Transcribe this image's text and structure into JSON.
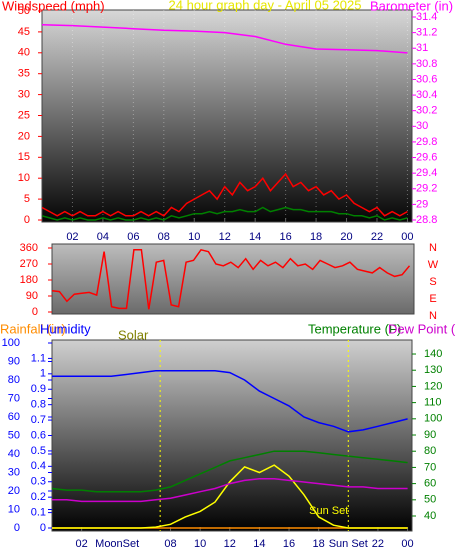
{
  "chart_data": [
    {
      "type": "line",
      "title": "24 hour graph day - April 05 2025",
      "y_label": "Windspeed (mph)",
      "x": [
        0,
        0.5,
        1,
        1.5,
        2,
        2.5,
        3,
        3.5,
        4,
        4.5,
        5,
        5.5,
        6,
        6.5,
        7,
        7.5,
        8,
        8.5,
        9,
        9.5,
        10,
        10.5,
        11,
        11.5,
        12,
        12.5,
        13,
        13.5,
        14,
        14.5,
        15,
        15.5,
        16,
        16.5,
        17,
        17.5,
        18,
        18.5,
        19,
        19.5,
        20,
        20.5,
        21,
        21.5,
        22,
        22.5,
        23,
        23.5,
        24
      ],
      "series": [
        {
          "color": "#ff0000",
          "axis": "y",
          "values": [
            3,
            2,
            1,
            2,
            1,
            2,
            1,
            1,
            2,
            1,
            2,
            1,
            1,
            2,
            1,
            2,
            1,
            3,
            2,
            4,
            5,
            6,
            7,
            5,
            8,
            6,
            9,
            7,
            8,
            10,
            7,
            9,
            11,
            8,
            9,
            7,
            8,
            6,
            7,
            5,
            6,
            4,
            3,
            2,
            3,
            1,
            2,
            1,
            2
          ]
        },
        {
          "color": "#008000",
          "axis": "y",
          "values": [
            1,
            0.5,
            0,
            0.5,
            0,
            0.5,
            0,
            0,
            0.5,
            0,
            0.5,
            0,
            0,
            0.5,
            0,
            0.5,
            0,
            1,
            0.5,
            1,
            1.5,
            1.5,
            2,
            1.5,
            2,
            2,
            2.5,
            2,
            2,
            3,
            2,
            2.5,
            3,
            2.5,
            2.5,
            2,
            2,
            2,
            2,
            1.5,
            1.5,
            1,
            1,
            0.5,
            1,
            0,
            0.5,
            0,
            0.5
          ]
        },
        {
          "name": "Barometer (in)",
          "color": "#ff00ff",
          "axis": "y2",
          "x": [
            0,
            2,
            4,
            6,
            8,
            10,
            12,
            14,
            16,
            18,
            20,
            22,
            24
          ],
          "values": [
            31.3,
            31.29,
            31.27,
            31.25,
            31.23,
            31.22,
            31.2,
            31.15,
            31.05,
            30.99,
            30.98,
            30.97,
            30.94
          ]
        }
      ],
      "xlim": [
        0,
        24.3
      ],
      "xticks": [
        {
          "value": 2,
          "label": "02"
        },
        {
          "value": 4,
          "label": "04"
        },
        {
          "value": 6,
          "label": "06"
        },
        {
          "value": 8,
          "label": "08"
        },
        10,
        12,
        14,
        16,
        18,
        20,
        22,
        {
          "value": 24,
          "label": "00"
        }
      ],
      "ylim": [
        0,
        50
      ],
      "yticks": [
        0,
        5,
        10,
        15,
        20,
        25,
        30,
        35,
        40,
        45,
        50
      ],
      "y2lim": [
        28.8,
        31.4
      ],
      "y2ticks": [
        28.8,
        29,
        29.2,
        29.4,
        29.6,
        29.8,
        30,
        30.2,
        30.4,
        30.6,
        30.8,
        31,
        31.2,
        31.4
      ],
      "axis_colors": {
        "y": "#ff0000",
        "y2": "#ff00ff"
      },
      "grid": true
    },
    {
      "type": "line",
      "x": [
        0,
        0.5,
        1,
        1.5,
        2,
        2.5,
        3,
        3.5,
        4,
        4.5,
        5,
        5.5,
        6,
        6.5,
        7,
        7.5,
        8,
        8.5,
        9,
        9.5,
        10,
        10.5,
        11,
        11.5,
        12,
        12.5,
        13,
        13.5,
        14,
        14.5,
        15,
        15.5,
        16,
        16.5,
        17,
        17.5,
        18,
        18.5,
        19,
        19.5,
        20,
        20.5,
        21,
        21.5,
        22,
        22.5,
        23,
        23.5,
        24
      ],
      "series": [
        {
          "color": "#ff0000",
          "axis": "y",
          "values": [
            120,
            115,
            60,
            100,
            105,
            110,
            95,
            340,
            30,
            20,
            20,
            350,
            350,
            15,
            280,
            290,
            40,
            30,
            280,
            290,
            350,
            340,
            270,
            260,
            280,
            250,
            300,
            240,
            290,
            260,
            280,
            250,
            300,
            260,
            270,
            240,
            290,
            270,
            250,
            260,
            280,
            240,
            230,
            220,
            250,
            220,
            200,
            210,
            260
          ]
        }
      ],
      "xlim": [
        0,
        24.3
      ],
      "ylim": [
        0,
        360
      ],
      "yticks": [
        0,
        90,
        180,
        270,
        360
      ],
      "direction_labels": [
        "N",
        "W",
        "S",
        "E",
        "N"
      ],
      "axis_colors": {
        "y": "#ff0000"
      },
      "grid": false
    },
    {
      "type": "line",
      "x": [
        0,
        1,
        2,
        3,
        4,
        5,
        6,
        7,
        8,
        9,
        10,
        11,
        12,
        13,
        14,
        15,
        16,
        17,
        18,
        19,
        20,
        21,
        22,
        23,
        24
      ],
      "series": [
        {
          "name": "Rainfall (in)",
          "color": "#ff8c00",
          "axis": "y2",
          "values": [
            0,
            0,
            0,
            0,
            0,
            0,
            0,
            0,
            0,
            0,
            0,
            0,
            0,
            0,
            0,
            0,
            0,
            0,
            0,
            0,
            0,
            0,
            0,
            0,
            0
          ]
        },
        {
          "name": "Humidity",
          "color": "#0000ff",
          "axis": "y",
          "values": [
            82,
            82,
            82,
            82,
            82,
            83,
            84,
            85,
            85,
            85,
            85,
            85,
            84,
            80,
            74,
            70,
            66,
            60,
            57,
            55,
            52,
            53,
            55,
            57,
            59
          ]
        },
        {
          "name": "Solar",
          "color": "#ffff00",
          "axis": "y4",
          "values": [
            0,
            0,
            0,
            0,
            0,
            0,
            0,
            5,
            20,
            60,
            90,
            140,
            250,
            330,
            300,
            340,
            280,
            180,
            60,
            15,
            0,
            0,
            0,
            0,
            0
          ]
        },
        {
          "name": "Temperature (F)",
          "color": "#008000",
          "axis": "y3",
          "values": [
            57,
            56,
            56,
            55,
            55,
            55,
            55,
            56,
            58,
            62,
            66,
            70,
            74,
            76,
            78,
            80,
            80,
            80,
            79,
            78,
            77,
            76,
            75,
            74,
            73
          ]
        },
        {
          "name": "Dew Point (F)",
          "color": "#cc00cc",
          "axis": "y3",
          "values": [
            50,
            50,
            49,
            49,
            49,
            49,
            49,
            50,
            51,
            53,
            55,
            57,
            60,
            62,
            63,
            63,
            62,
            61,
            60,
            59,
            58,
            58,
            57,
            57,
            57
          ]
        }
      ],
      "xlim": [
        0,
        24.3
      ],
      "xticks": [
        {
          "value": 2,
          "label": "02"
        },
        {
          "value": 8,
          "label": "08"
        },
        10,
        12,
        14,
        16,
        18,
        22,
        {
          "value": 24,
          "label": "00"
        }
      ],
      "ylim": [
        0,
        100
      ],
      "yticks": [
        0,
        10,
        20,
        30,
        40,
        50,
        60,
        70,
        80,
        90,
        100
      ],
      "y2lim": [
        0,
        1.2
      ],
      "y2ticks": [
        0,
        0.1,
        0.2,
        0.3,
        0.4,
        0.5,
        0.6,
        0.7,
        0.8,
        0.9,
        1,
        1.1
      ],
      "y3lim": [
        32.6,
        146.8
      ],
      "y3ticks": [
        40,
        50,
        60,
        70,
        80,
        90,
        100,
        110,
        120,
        130,
        140
      ],
      "y4lim": [
        0,
        1000
      ],
      "axis_colors": {
        "y": "#0000ff",
        "y2": "#0000ff",
        "y3": "#008000"
      },
      "event_lines": [
        7.3,
        20
      ],
      "annotations": [
        {
          "text": "MoonSet",
          "x": 4.4,
          "where": "axis"
        },
        {
          "text": "Sun Set",
          "x": 20,
          "where": "axis"
        },
        {
          "text": "Sun Set",
          "x": 20,
          "where": "plot"
        }
      ],
      "grid": false
    }
  ]
}
